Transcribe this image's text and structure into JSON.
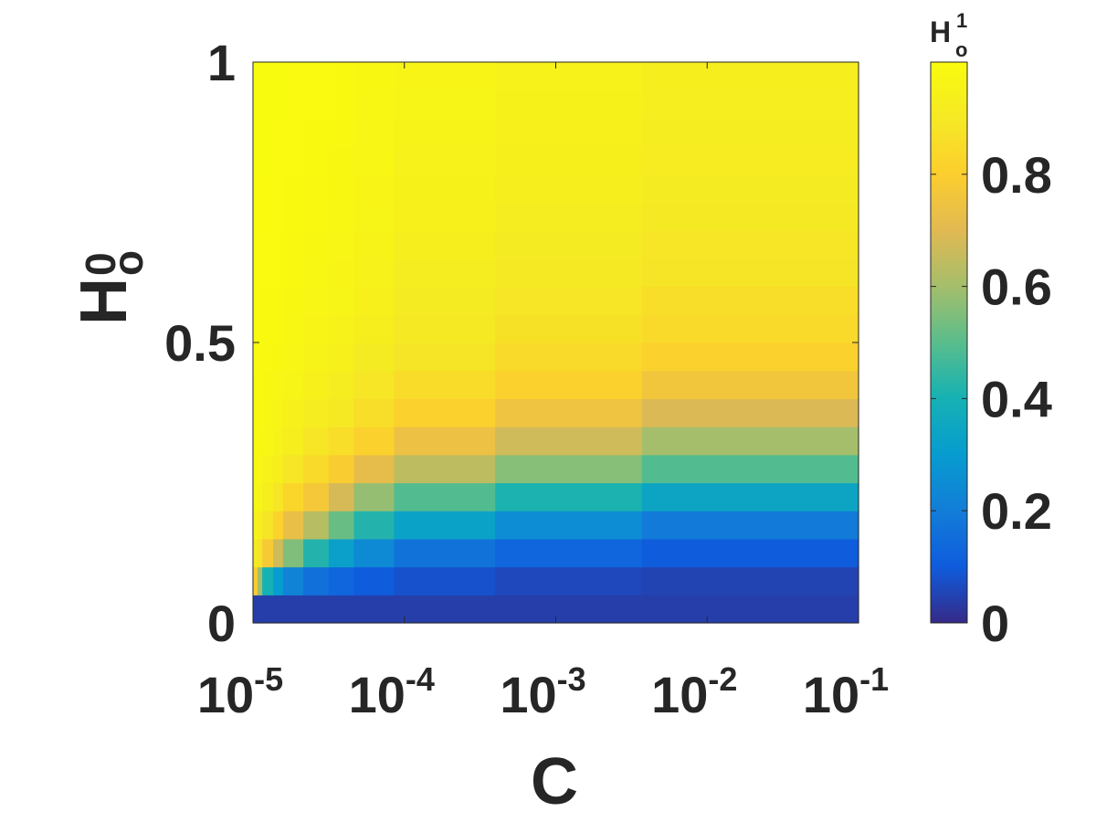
{
  "chart_data": {
    "type": "heatmap",
    "xlabel": "C",
    "ylabel": {
      "base": "H",
      "sup": "0",
      "sub": "o"
    },
    "colorbar_label": {
      "base": "H",
      "sup": "1",
      "sub": "o"
    },
    "x_scale": "log",
    "x_ticks": [
      {
        "value": 1e-05,
        "base": "10",
        "exp": "-5"
      },
      {
        "value": 0.0001,
        "base": "10",
        "exp": "-4"
      },
      {
        "value": 0.001,
        "base": "10",
        "exp": "-3"
      },
      {
        "value": 0.01,
        "base": "10",
        "exp": "-2"
      },
      {
        "value": 0.1,
        "base": "10",
        "exp": "-1"
      }
    ],
    "y_ticks": [
      {
        "value": 0,
        "label": "0"
      },
      {
        "value": 0.5,
        "label": "0.5"
      },
      {
        "value": 1,
        "label": "1"
      }
    ],
    "xlim": [
      1e-05,
      0.1
    ],
    "ylim": [
      0,
      1
    ],
    "colorbar_ticks": [
      {
        "value": 0,
        "label": "0"
      },
      {
        "value": 0.2,
        "label": "0.2"
      },
      {
        "value": 0.4,
        "label": "0.4"
      },
      {
        "value": 0.6,
        "label": "0.6"
      },
      {
        "value": 0.8,
        "label": "0.8"
      }
    ],
    "colorbar_range": [
      0,
      1
    ],
    "colormap": "parula",
    "x_edges": [
      1e-05,
      1.07e-05,
      1.15e-05,
      1.36e-05,
      1.58e-05,
      2.15e-05,
      3.16e-05,
      4.64e-05,
      8.54e-05,
      0.000398,
      0.00371,
      0.1
    ],
    "y_edges": [
      0,
      0.05,
      0.1,
      0.15,
      0.2,
      0.25,
      0.3,
      0.35,
      0.4,
      0.45,
      0.5,
      0.55,
      0.6,
      0.65,
      0.7,
      0.75,
      0.8,
      0.85,
      0.9,
      0.95,
      1
    ],
    "z": [
      [
        0.04,
        0.04,
        0.04,
        0.04,
        0.04,
        0.04,
        0.04,
        0.04,
        0.04,
        0.04,
        0.04
      ],
      [
        0.79,
        0.6,
        0.4,
        0.3,
        0.22,
        0.16,
        0.13,
        0.1,
        0.08,
        0.06,
        0.05
      ],
      [
        0.9,
        0.88,
        0.78,
        0.67,
        0.55,
        0.42,
        0.32,
        0.24,
        0.17,
        0.13,
        0.1
      ],
      [
        0.95,
        0.93,
        0.88,
        0.82,
        0.73,
        0.63,
        0.52,
        0.42,
        0.33,
        0.25,
        0.19
      ],
      [
        0.97,
        0.96,
        0.93,
        0.89,
        0.83,
        0.77,
        0.68,
        0.58,
        0.49,
        0.41,
        0.34
      ],
      [
        0.98,
        0.97,
        0.95,
        0.93,
        0.89,
        0.84,
        0.79,
        0.72,
        0.64,
        0.56,
        0.49
      ],
      [
        0.985,
        0.98,
        0.97,
        0.95,
        0.93,
        0.89,
        0.86,
        0.81,
        0.74,
        0.67,
        0.6
      ],
      [
        0.99,
        0.985,
        0.975,
        0.96,
        0.94,
        0.92,
        0.9,
        0.86,
        0.81,
        0.75,
        0.69
      ],
      [
        0.99,
        0.99,
        0.98,
        0.97,
        0.96,
        0.94,
        0.92,
        0.89,
        0.85,
        0.81,
        0.76
      ],
      [
        0.995,
        0.99,
        0.985,
        0.98,
        0.97,
        0.955,
        0.94,
        0.91,
        0.88,
        0.84,
        0.81
      ],
      [
        0.995,
        0.995,
        0.99,
        0.985,
        0.975,
        0.965,
        0.95,
        0.93,
        0.9,
        0.87,
        0.84
      ],
      [
        0.997,
        0.995,
        0.99,
        0.985,
        0.98,
        0.97,
        0.96,
        0.94,
        0.91,
        0.89,
        0.86
      ],
      [
        0.997,
        0.997,
        0.995,
        0.99,
        0.985,
        0.975,
        0.965,
        0.95,
        0.92,
        0.9,
        0.88
      ],
      [
        0.998,
        0.997,
        0.995,
        0.99,
        0.985,
        0.98,
        0.97,
        0.955,
        0.93,
        0.91,
        0.89
      ],
      [
        0.998,
        0.998,
        0.996,
        0.993,
        0.99,
        0.985,
        0.975,
        0.96,
        0.94,
        0.92,
        0.9
      ],
      [
        0.999,
        0.998,
        0.997,
        0.995,
        0.99,
        0.985,
        0.98,
        0.965,
        0.945,
        0.93,
        0.91
      ],
      [
        0.999,
        0.999,
        0.998,
        0.996,
        0.993,
        0.99,
        0.98,
        0.97,
        0.95,
        0.935,
        0.915
      ],
      [
        0.999,
        0.999,
        0.998,
        0.997,
        0.995,
        0.99,
        0.985,
        0.97,
        0.955,
        0.94,
        0.92
      ],
      [
        1.0,
        0.999,
        0.999,
        0.998,
        0.996,
        0.993,
        0.99,
        0.975,
        0.96,
        0.945,
        0.925
      ],
      [
        1.0,
        1.0,
        0.999,
        0.998,
        0.997,
        0.995,
        0.99,
        0.98,
        0.965,
        0.95,
        0.93
      ]
    ]
  }
}
